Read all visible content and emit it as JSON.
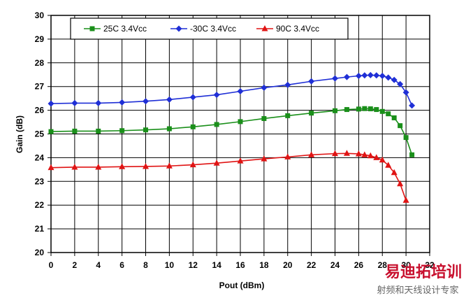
{
  "chart_data": {
    "type": "line",
    "title": "",
    "xlabel": "Pout (dBm)",
    "ylabel": "Gain (dB)",
    "xlim": [
      0,
      32
    ],
    "ylim": [
      20,
      30
    ],
    "xticks": [
      0,
      2,
      4,
      6,
      8,
      10,
      12,
      14,
      16,
      18,
      20,
      22,
      24,
      26,
      28,
      30,
      32
    ],
    "yticks": [
      20,
      21,
      22,
      23,
      24,
      25,
      26,
      27,
      28,
      29,
      30
    ],
    "grid": true,
    "legend_position": "top",
    "series": [
      {
        "name": "25C 3.4Vcc",
        "color": "#1a8f1a",
        "marker": "square",
        "points": [
          [
            0,
            25.1
          ],
          [
            2,
            25.12
          ],
          [
            4,
            25.12
          ],
          [
            6,
            25.14
          ],
          [
            8,
            25.17
          ],
          [
            10,
            25.22
          ],
          [
            12,
            25.3
          ],
          [
            14,
            25.4
          ],
          [
            16,
            25.52
          ],
          [
            18,
            25.65
          ],
          [
            20,
            25.77
          ],
          [
            22,
            25.88
          ],
          [
            24,
            25.98
          ],
          [
            25,
            26.03
          ],
          [
            26,
            26.05
          ],
          [
            26.5,
            26.07
          ],
          [
            27,
            26.06
          ],
          [
            27.5,
            26.03
          ],
          [
            28,
            25.95
          ],
          [
            28.5,
            25.85
          ],
          [
            29,
            25.68
          ],
          [
            29.5,
            25.35
          ],
          [
            30,
            24.85
          ],
          [
            30.5,
            24.12
          ]
        ]
      },
      {
        "name": "-30C 3.4Vcc",
        "color": "#1f2fd6",
        "marker": "diamond",
        "points": [
          [
            0,
            26.28
          ],
          [
            2,
            26.3
          ],
          [
            4,
            26.3
          ],
          [
            6,
            26.33
          ],
          [
            8,
            26.38
          ],
          [
            10,
            26.45
          ],
          [
            12,
            26.55
          ],
          [
            14,
            26.65
          ],
          [
            16,
            26.8
          ],
          [
            18,
            26.95
          ],
          [
            20,
            27.07
          ],
          [
            22,
            27.22
          ],
          [
            24,
            27.34
          ],
          [
            25,
            27.4
          ],
          [
            26,
            27.45
          ],
          [
            26.5,
            27.47
          ],
          [
            27,
            27.48
          ],
          [
            27.5,
            27.47
          ],
          [
            28,
            27.45
          ],
          [
            28.5,
            27.38
          ],
          [
            29,
            27.28
          ],
          [
            29.5,
            27.1
          ],
          [
            30,
            26.75
          ],
          [
            30.5,
            26.2
          ]
        ]
      },
      {
        "name": "90C 3.4Vcc",
        "color": "#e01414",
        "marker": "triangle",
        "points": [
          [
            0,
            23.58
          ],
          [
            2,
            23.6
          ],
          [
            4,
            23.6
          ],
          [
            6,
            23.62
          ],
          [
            8,
            23.63
          ],
          [
            10,
            23.65
          ],
          [
            12,
            23.7
          ],
          [
            14,
            23.77
          ],
          [
            16,
            23.86
          ],
          [
            18,
            23.95
          ],
          [
            20,
            24.03
          ],
          [
            22,
            24.12
          ],
          [
            24,
            24.17
          ],
          [
            25,
            24.18
          ],
          [
            26,
            24.16
          ],
          [
            26.5,
            24.12
          ],
          [
            27,
            24.08
          ],
          [
            27.5,
            24.0
          ],
          [
            28,
            23.9
          ],
          [
            28.5,
            23.68
          ],
          [
            29,
            23.37
          ],
          [
            29.5,
            22.9
          ],
          [
            30,
            22.2
          ]
        ]
      }
    ]
  },
  "watermark": {
    "main": "易迪拓培训",
    "sub": "射频和天线设计专家"
  }
}
